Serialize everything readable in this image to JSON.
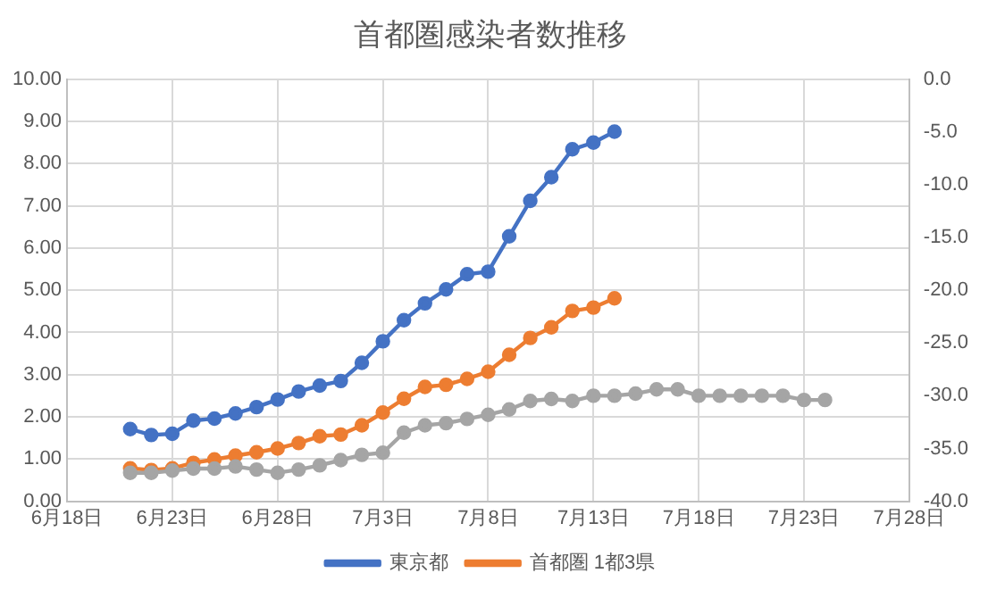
{
  "chart_data": {
    "type": "line",
    "title": "首都圏感染者数推移",
    "x": [
      "--06-21",
      "--06-22",
      "--06-23",
      "--06-24",
      "--06-25",
      "--06-26",
      "--06-27",
      "--06-28",
      "--06-29",
      "--06-30",
      "--07-01",
      "--07-02",
      "--07-03",
      "--07-04",
      "--07-05",
      "--07-06",
      "--07-07",
      "--07-08",
      "--07-09",
      "--07-10",
      "--07-11",
      "--07-12",
      "--07-13",
      "--07-14",
      "--07-15",
      "--07-16",
      "--07-17",
      "--07-18",
      "--07-19",
      "--07-20",
      "--07-21",
      "--07-22",
      "--07-23",
      "--07-24"
    ],
    "series": [
      {
        "name": "東京都",
        "color": "#4472c4",
        "values": [
          1.71,
          1.57,
          1.6,
          1.91,
          1.96,
          2.08,
          2.23,
          2.41,
          2.6,
          2.74,
          2.85,
          3.28,
          3.79,
          4.29,
          4.69,
          5.02,
          5.38,
          5.44,
          6.28,
          7.12,
          7.68,
          8.34,
          8.5,
          8.76,
          null,
          null,
          null,
          null,
          null,
          null,
          null,
          null,
          null,
          null
        ]
      },
      {
        "name": "首都圏 1都3県",
        "color": "#ed7d31",
        "values": [
          0.78,
          0.74,
          0.78,
          0.91,
          0.99,
          1.08,
          1.16,
          1.25,
          1.38,
          1.54,
          1.58,
          1.8,
          2.1,
          2.43,
          2.71,
          2.76,
          2.9,
          3.07,
          3.47,
          3.87,
          4.12,
          4.51,
          4.59,
          4.81,
          null,
          null,
          null,
          null,
          null,
          null,
          null,
          null,
          null,
          null
        ]
      },
      {
        "color": "#a5a5a5",
        "axis": "y2",
        "values": [
          -37.3,
          -37.3,
          -37.1,
          -36.9,
          -36.9,
          -36.7,
          -37.0,
          -37.3,
          -37.0,
          -36.6,
          -36.1,
          -35.6,
          -35.4,
          -33.5,
          -32.8,
          -32.6,
          -32.2,
          -31.8,
          -31.3,
          -30.5,
          -30.3,
          -30.5,
          -30.0,
          -30.0,
          -29.8,
          -29.4,
          -29.4,
          -30.0,
          -30.0,
          -30.0,
          -30.0,
          -30.0,
          -30.4,
          -30.4
        ]
      }
    ],
    "xlim": [
      "--06-18",
      "--07-28"
    ],
    "xticks": [
      {
        "value": "--06-18",
        "label": "6月18日"
      },
      {
        "value": "--06-23",
        "label": "6月23日"
      },
      {
        "value": "--06-28",
        "label": "6月28日"
      },
      {
        "value": "--07-03",
        "label": "7月3日"
      },
      {
        "value": "--07-08",
        "label": "7月8日"
      },
      {
        "value": "--07-13",
        "label": "7月13日"
      },
      {
        "value": "--07-18",
        "label": "7月18日"
      },
      {
        "value": "--07-23",
        "label": "7月23日"
      },
      {
        "value": "--07-28",
        "label": "7月28日"
      }
    ],
    "ylim": [
      0,
      10
    ],
    "yticks": [
      {
        "value": 0,
        "label": "0.00"
      },
      {
        "value": 1,
        "label": "1.00"
      },
      {
        "value": 2,
        "label": "2.00"
      },
      {
        "value": 3,
        "label": "3.00"
      },
      {
        "value": 4,
        "label": "4.00"
      },
      {
        "value": 5,
        "label": "5.00"
      },
      {
        "value": 6,
        "label": "6.00"
      },
      {
        "value": 7,
        "label": "7.00"
      },
      {
        "value": 8,
        "label": "8.00"
      },
      {
        "value": 9,
        "label": "9.00"
      },
      {
        "value": 10,
        "label": "10.00"
      }
    ],
    "y2lim": [
      -40,
      0
    ],
    "y2ticks": [
      {
        "value": -40,
        "label": "-40.0"
      },
      {
        "value": -35,
        "label": "-35.0"
      },
      {
        "value": -30,
        "label": "-30.0"
      },
      {
        "value": -25,
        "label": "-25.0"
      },
      {
        "value": -20,
        "label": "-20.0"
      },
      {
        "value": -15,
        "label": "-15.0"
      },
      {
        "value": -10,
        "label": "-10.0"
      },
      {
        "value": -5,
        "label": "-5.0"
      },
      {
        "value": 0,
        "label": "0.0"
      }
    ],
    "grid": true,
    "legend": "bottom",
    "marker": "circle",
    "line_style": "solid"
  }
}
